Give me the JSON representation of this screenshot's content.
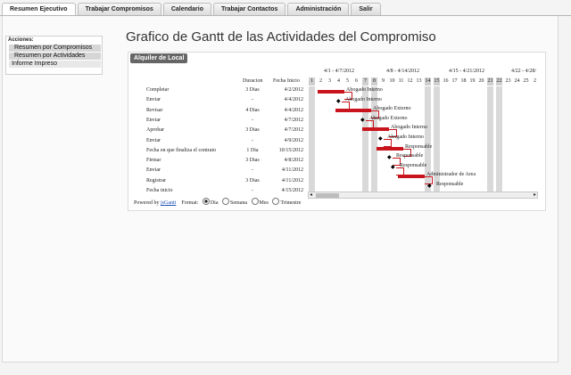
{
  "tabs": [
    "Resumen Ejecutivo",
    "Trabajar Compromisos",
    "Calendario",
    "Trabajar Contactos",
    "Administración",
    "Salir"
  ],
  "sidebar": {
    "title": "Acciones:",
    "items": [
      "Resumen por Compromisos",
      "Resumen por Actividades",
      "Informe Impreso"
    ]
  },
  "page_title": "Grafico de Gantt de las Actividades del Compromiso",
  "section_label": "Alquiler de Local",
  "grid_headers": {
    "duracion": "Duracion",
    "fecha_inicio": "Fecha Inicio"
  },
  "rows": [
    {
      "name": "Completar",
      "dur": "3 Dias",
      "date": "4/2/2012"
    },
    {
      "name": "Enviar",
      "dur": "-",
      "date": "4/4/2012"
    },
    {
      "name": "Revisar",
      "dur": "4 Dias",
      "date": "4/4/2012"
    },
    {
      "name": "Enviar",
      "dur": "-",
      "date": "4/7/2012"
    },
    {
      "name": "Aprobar",
      "dur": "3 Dias",
      "date": "4/7/2012"
    },
    {
      "name": "Enviar",
      "dur": "-",
      "date": "4/9/2012"
    },
    {
      "name": "Fecha en que finaliza el contrato",
      "dur": "1 Dia",
      "date": "10/15/2012"
    },
    {
      "name": "Firmar",
      "dur": "3 Dias",
      "date": "4/8/2012"
    },
    {
      "name": "Enviar",
      "dur": "-",
      "date": "4/11/2012"
    },
    {
      "name": "Registrar",
      "dur": "3 Dias",
      "date": "4/11/2012"
    },
    {
      "name": "Fecha inicio",
      "dur": "-",
      "date": "4/15/2012"
    }
  ],
  "weeks": [
    "4/1 - 4/7/2012",
    "4/8 - 4/14/2012",
    "4/15 - 4/21/2012",
    "4/22 - 4/28/"
  ],
  "days": [
    "1",
    "2",
    "3",
    "4",
    "5",
    "6",
    "7",
    "8",
    "9",
    "10",
    "11",
    "12",
    "13",
    "14",
    "15",
    "16",
    "17",
    "18",
    "19",
    "20",
    "21",
    "22",
    "23",
    "24",
    "25",
    "2"
  ],
  "task_labels": [
    "Abogado Interno",
    "Abogado Interno",
    "Abogado Externo",
    "Abogado Externo",
    "Abogado Interno",
    "Abogado Interno",
    "Responsable",
    "Responsable",
    "Responsable",
    "Administrador de Area",
    "Responsable"
  ],
  "footer": {
    "powered_by": "Powered by",
    "link": "jsGantt",
    "formato": "Format:",
    "options": [
      "Dia",
      "Semana",
      "Mes",
      "Trimestre"
    ],
    "selected": "Dia"
  }
}
